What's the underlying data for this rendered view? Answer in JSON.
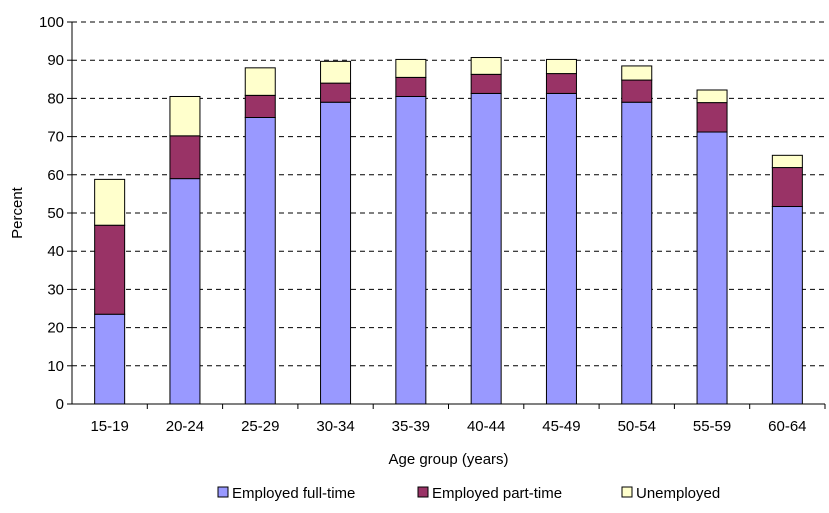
{
  "chart_data": {
    "type": "bar",
    "stacked": true,
    "title": "",
    "xlabel": "Age group (years)",
    "ylabel": "Percent",
    "ylim": [
      0,
      100
    ],
    "yticks": [
      0,
      10,
      20,
      30,
      40,
      50,
      60,
      70,
      80,
      90,
      100
    ],
    "grid": "horizontal dashed",
    "legend_position": "bottom",
    "categories": [
      "15-19",
      "20-24",
      "25-29",
      "30-34",
      "35-39",
      "40-44",
      "45-49",
      "50-54",
      "55-59",
      "60-64"
    ],
    "series": [
      {
        "name": "Employed full-time",
        "color": "#9999ff",
        "values": [
          23.5,
          59,
          75,
          79,
          80.5,
          81.3,
          81.3,
          79,
          71.2,
          51.7
        ]
      },
      {
        "name": "Employed part-time",
        "color": "#993366",
        "values": [
          23.3,
          11.2,
          5.8,
          5,
          5,
          5,
          5.2,
          5.8,
          7.7,
          10.2
        ]
      },
      {
        "name": "Unemployed",
        "color": "#ffffcc",
        "values": [
          12,
          10.3,
          7.2,
          5.7,
          4.7,
          4.4,
          3.7,
          3.7,
          3.3,
          3.2
        ]
      }
    ]
  }
}
